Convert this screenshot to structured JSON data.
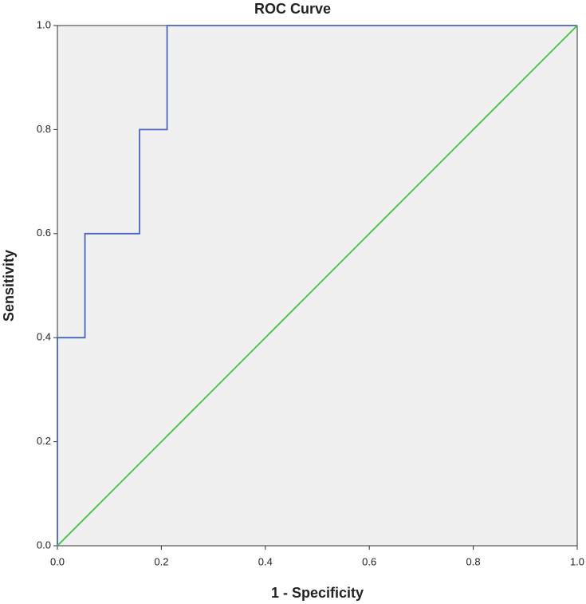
{
  "chart_data": {
    "type": "line",
    "title": "ROC Curve",
    "x_label": "1 - Specificity",
    "y_label": "Sensitivity",
    "xlim": [
      0,
      1
    ],
    "ylim": [
      0,
      1
    ],
    "xticks": [
      {
        "value": 0,
        "label": "0.0"
      },
      0.2,
      0.4,
      0.6,
      0.8,
      {
        "value": 1,
        "label": "1.0"
      }
    ],
    "yticks": [
      {
        "value": 0,
        "label": "0.0"
      },
      0.2,
      0.4,
      0.6,
      0.8,
      {
        "value": 1,
        "label": "1.0"
      }
    ],
    "series": [
      {
        "color": "#4a63bd",
        "x": [
          0,
          0,
          0.053,
          0.053,
          0.158,
          0.158,
          0.211,
          0.211,
          1
        ],
        "values": [
          0,
          0.4,
          0.4,
          0.6,
          0.6,
          0.8,
          0.8,
          1,
          1
        ]
      },
      {
        "color": "#3ec43e",
        "x": [
          0,
          1
        ],
        "values": [
          0,
          1
        ]
      }
    ]
  }
}
